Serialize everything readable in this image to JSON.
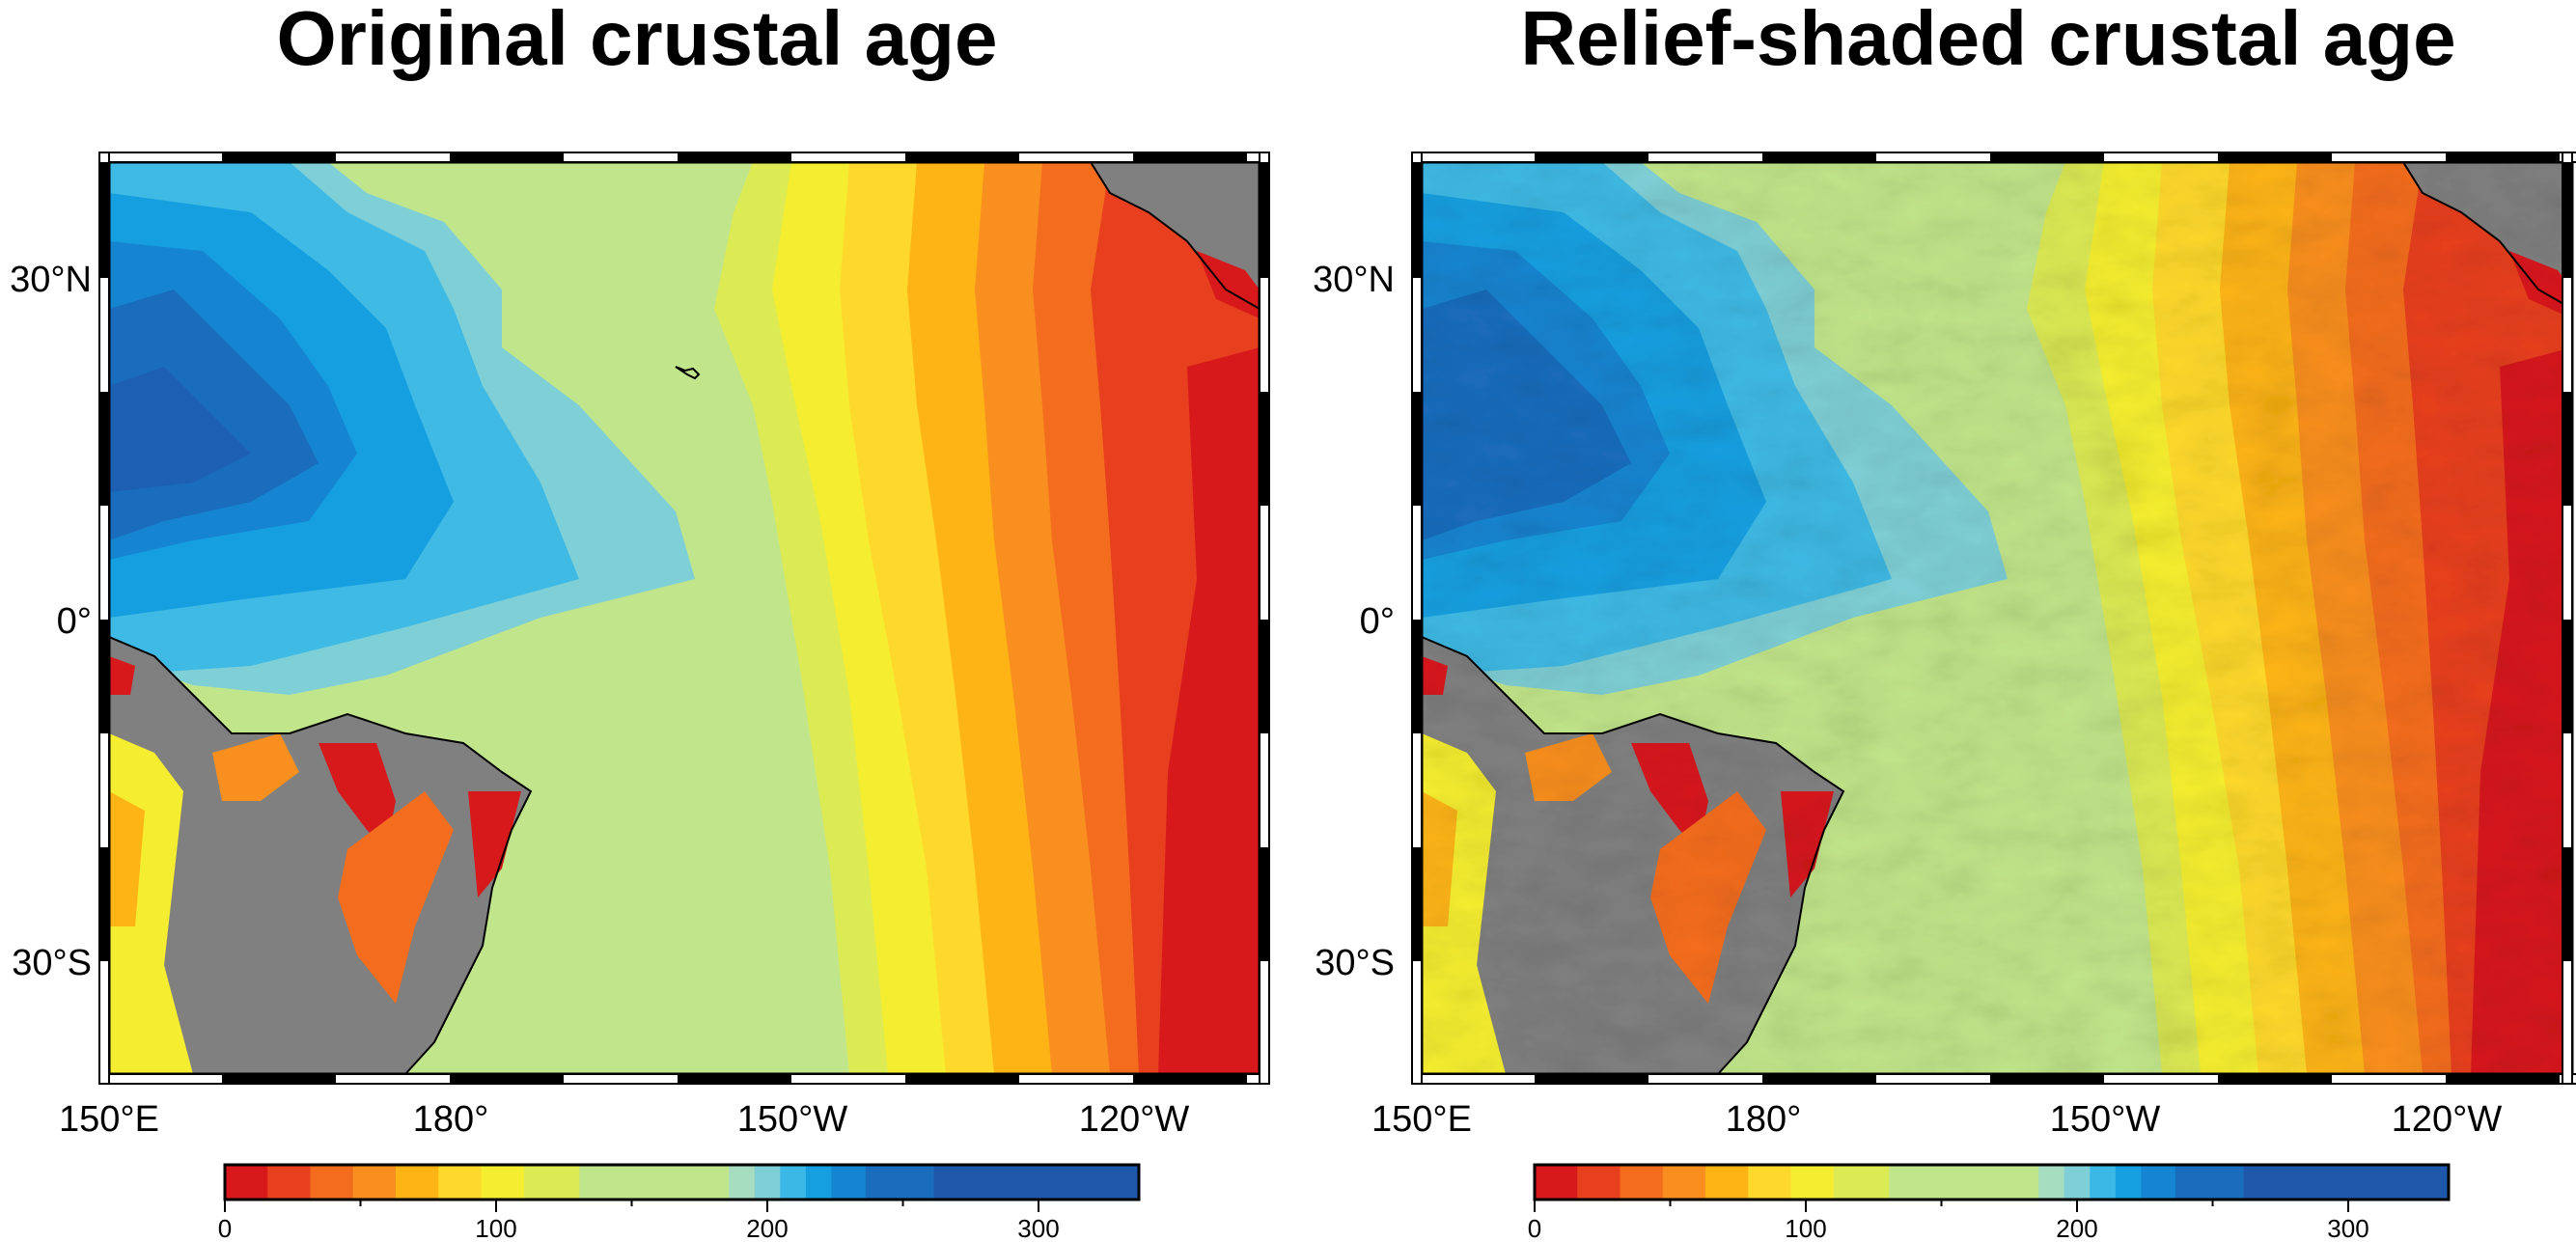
{
  "panels": [
    {
      "title": "Original crustal age",
      "lat_labels": [
        "30°N",
        "0°",
        "30°S"
      ],
      "lon_labels": [
        "150°E",
        "180°",
        "150°W",
        "120°W"
      ],
      "shaded": false
    },
    {
      "title": "Relief-shaded crustal age",
      "lat_labels": [
        "30°N",
        "0°",
        "30°S"
      ],
      "lon_labels": [
        "150°E",
        "180°",
        "150°W",
        "120°W"
      ],
      "shaded": true
    }
  ],
  "colorbar": {
    "tick_labels": [
      "0",
      "100",
      "200",
      "300"
    ],
    "colors": [
      "#d7191c",
      "#e8401e",
      "#f46d1e",
      "#f98f1f",
      "#fdb414",
      "#fed92b",
      "#f5ee30",
      "#dcea54",
      "#c1e58a",
      "#a6dcc0",
      "#7fd0d6",
      "#3cb8e6",
      "#159fe0",
      "#1685d1",
      "#1a6dbd",
      "#1f57aa"
    ]
  },
  "map_colors": {
    "land": "#808080",
    "coast": "#000000"
  }
}
